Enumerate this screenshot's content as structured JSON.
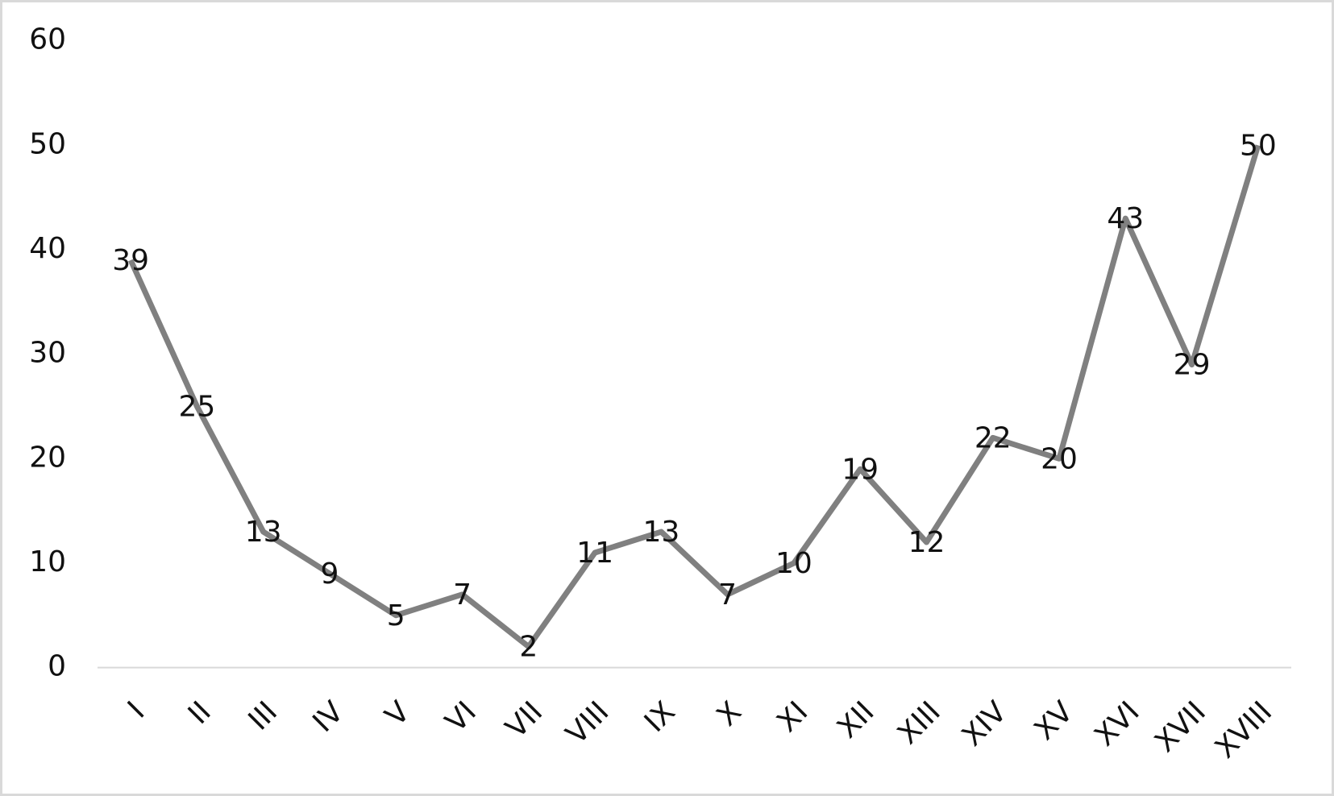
{
  "chart_data": {
    "type": "line",
    "categories": [
      "I",
      "II",
      "III",
      "IV",
      "V",
      "VI",
      "VII",
      "VIII",
      "IX",
      "X",
      "XI",
      "XII",
      "XIII",
      "XIV",
      "XV",
      "XVI",
      "XVII",
      "XVIII"
    ],
    "values": [
      39,
      25,
      13,
      9,
      5,
      7,
      2,
      11,
      13,
      7,
      10,
      19,
      12,
      22,
      20,
      43,
      29,
      50
    ],
    "color": "#808080",
    "ylim": [
      0,
      60
    ],
    "yticks": [
      0,
      10,
      20,
      30,
      40,
      50,
      60
    ],
    "grid": false,
    "data_labels": true
  }
}
